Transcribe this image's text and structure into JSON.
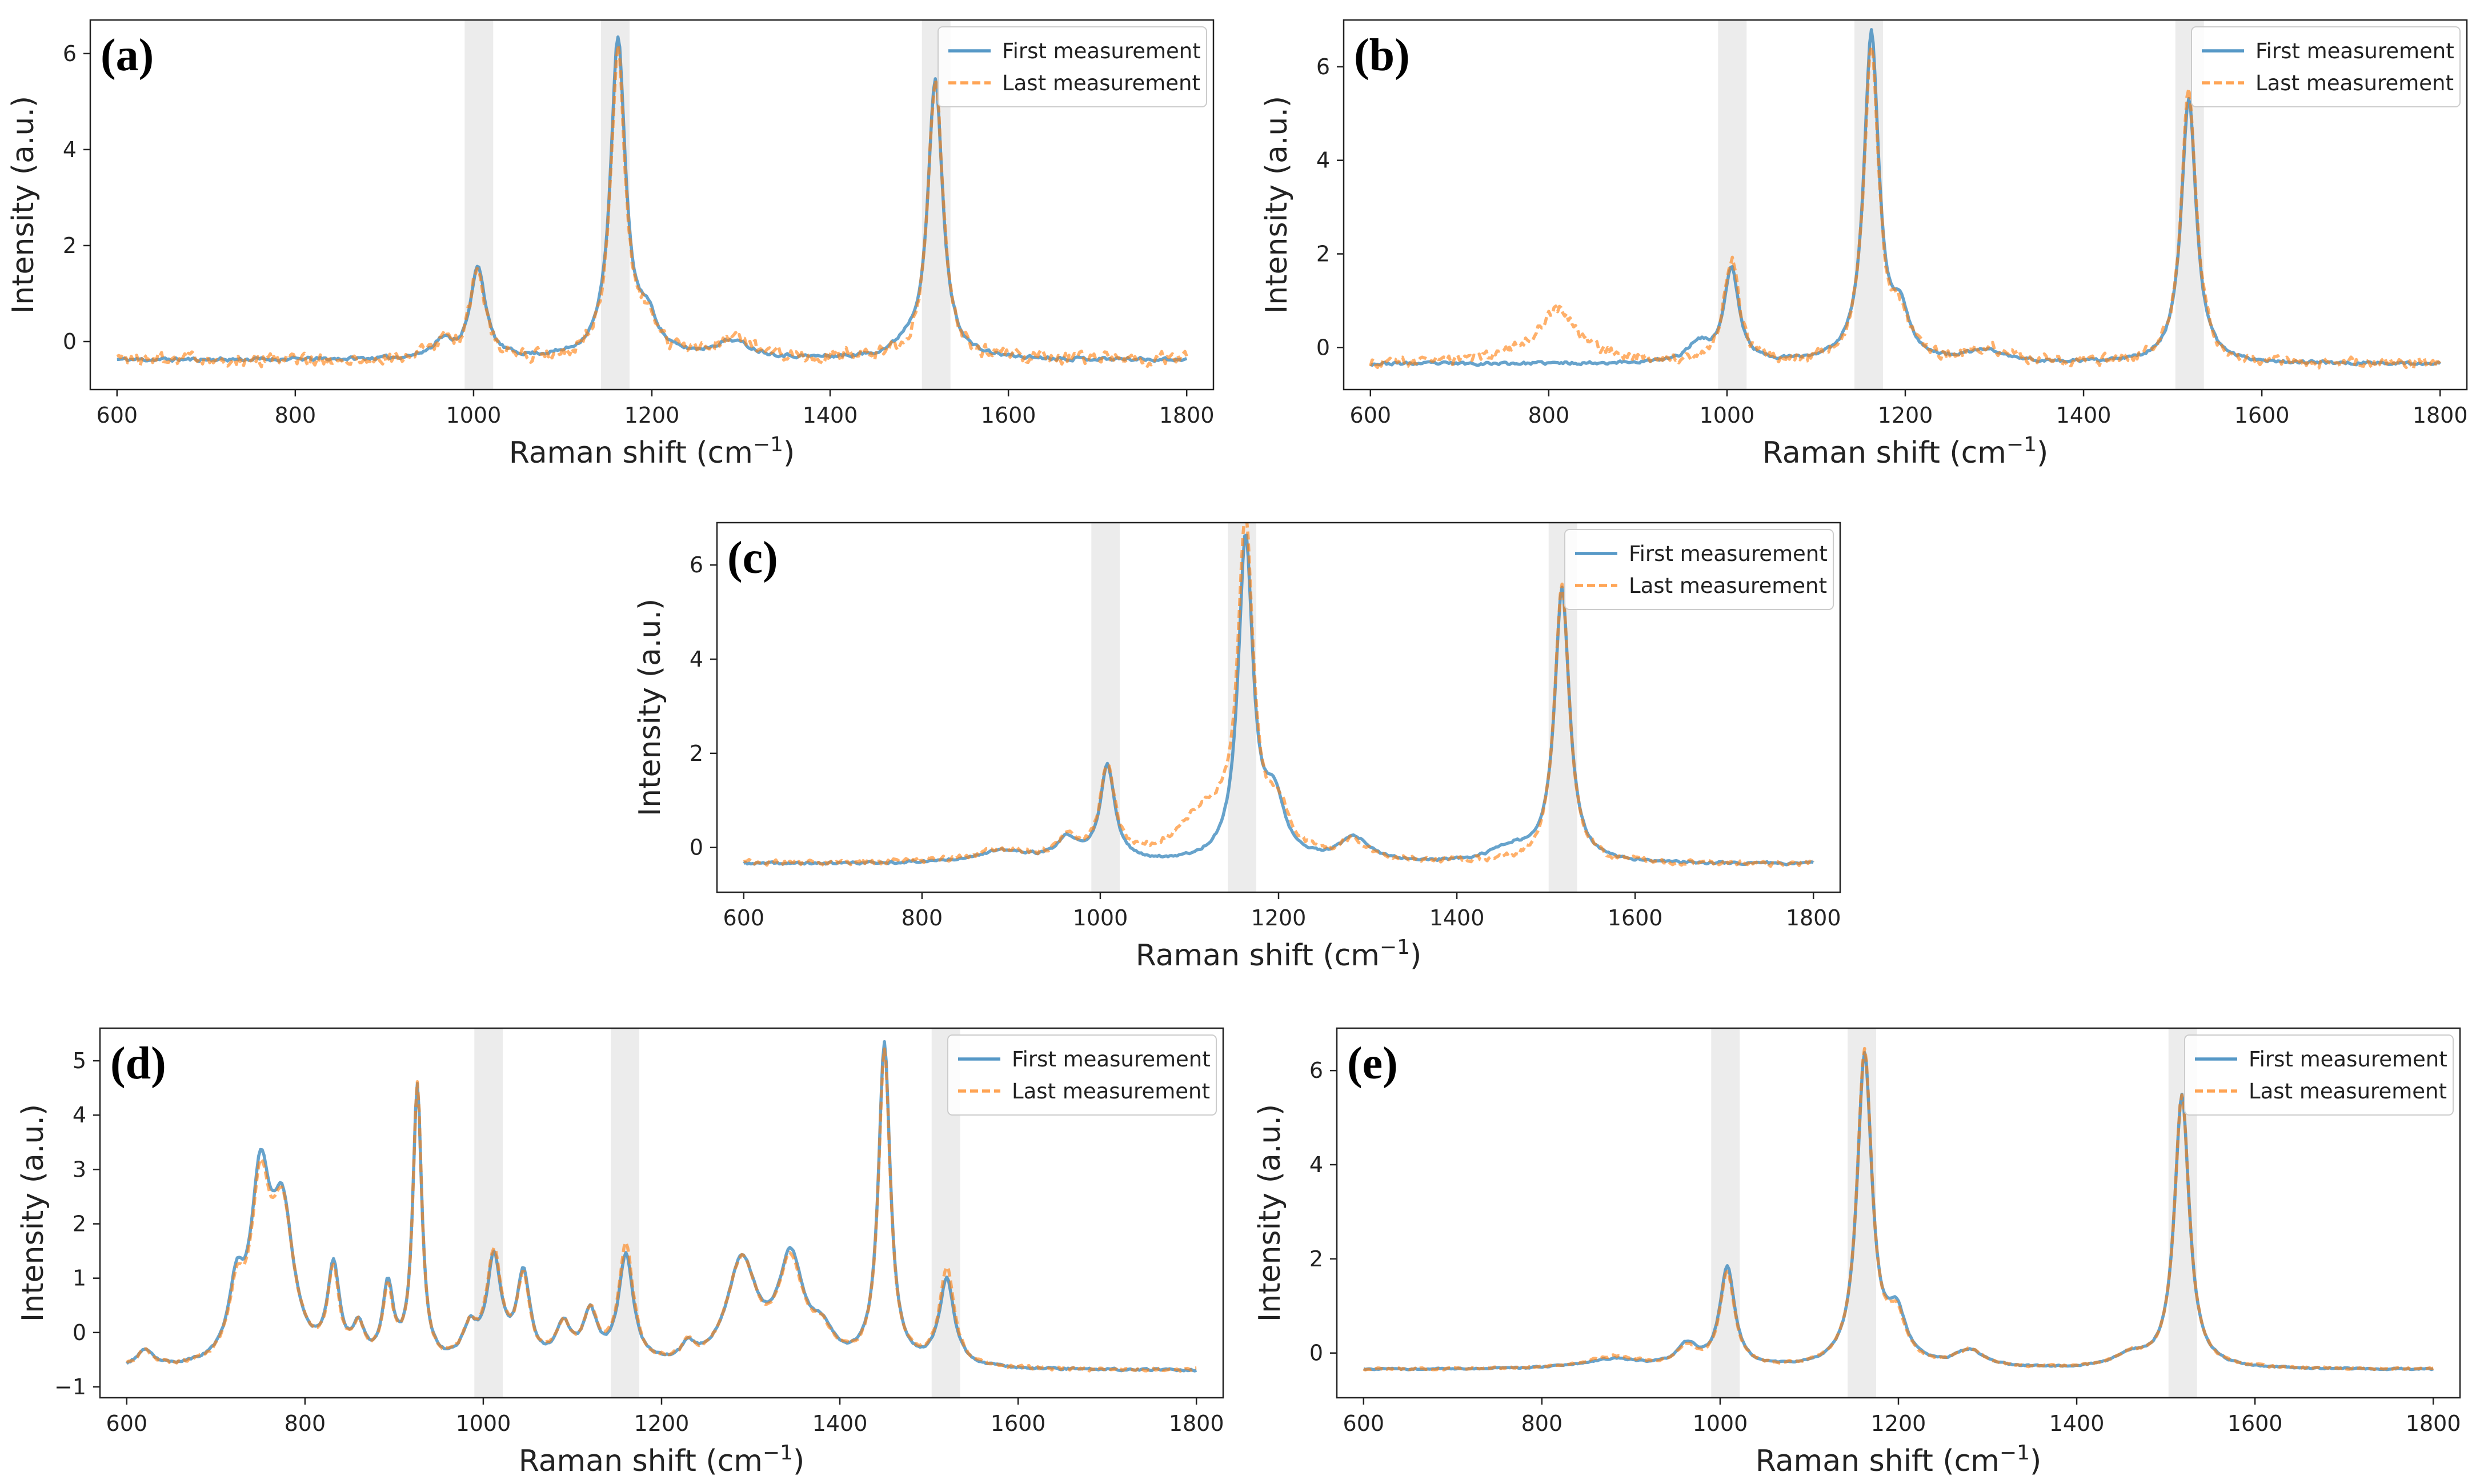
{
  "figure": {
    "legend_entries": [
      "First measurement",
      "Last measurement"
    ],
    "colors": {
      "first": "#1f77b4",
      "last": "#ff7f0e",
      "band": "#dddddd",
      "axis": "#222222"
    }
  },
  "chart_data": [
    {
      "panel": "(a)",
      "type": "line",
      "xlabel": "Raman shift (cm",
      "xlabel_sup": "−1",
      "xlabel_end": ")",
      "ylabel": "Intensity (a.u.)",
      "xlim": [
        570,
        1830
      ],
      "ylim": [
        -1.0,
        6.7
      ],
      "xticks": [
        600,
        800,
        1000,
        1200,
        1400,
        1600,
        1800
      ],
      "yticks": [
        0,
        2,
        4,
        6
      ],
      "shaded_bands": [
        [
          990,
          1022
        ],
        [
          1143,
          1175
        ],
        [
          1503,
          1535
        ]
      ],
      "legend": "top-right",
      "baseline": -0.38,
      "noise_first": 0.06,
      "noise_last": 0.22,
      "seed": 11,
      "series": [
        {
          "name": "First measurement",
          "peaks": [
            [
              1005,
              1.9,
              10
            ],
            [
              1162,
              6.6,
              10
            ],
            [
              1518,
              5.8,
              10
            ],
            [
              965,
              0.35,
              14
            ],
            [
              1195,
              0.7,
              14
            ],
            [
              1290,
              0.35,
              25
            ],
            [
              1485,
              0.2,
              15
            ]
          ]
        },
        {
          "name": "Last measurement",
          "peaks": [
            [
              1005,
              1.9,
              10
            ],
            [
              1162,
              6.3,
              10
            ],
            [
              1518,
              5.8,
              10
            ],
            [
              965,
              0.3,
              14
            ],
            [
              1195,
              0.6,
              14
            ],
            [
              1290,
              0.4,
              25
            ]
          ]
        }
      ]
    },
    {
      "panel": "(b)",
      "type": "line",
      "xlabel": "Raman shift (cm",
      "xlabel_sup": "−1",
      "xlabel_end": ")",
      "ylabel": "Intensity (a.u.)",
      "xlim": [
        570,
        1830
      ],
      "ylim": [
        -0.9,
        7.0
      ],
      "xticks": [
        600,
        800,
        1000,
        1200,
        1400,
        1600,
        1800
      ],
      "yticks": [
        0,
        2,
        4,
        6
      ],
      "shaded_bands": [
        [
          990,
          1022
        ],
        [
          1143,
          1175
        ],
        [
          1503,
          1535
        ]
      ],
      "legend": "top-right",
      "baseline": -0.35,
      "noise_first": 0.05,
      "noise_last": 0.18,
      "seed": 23,
      "series": [
        {
          "name": "First measurement",
          "peaks": [
            [
              1005,
              2.0,
              10
            ],
            [
              1162,
              7.0,
              10
            ],
            [
              1518,
              5.7,
              10
            ],
            [
              968,
              0.4,
              14
            ],
            [
              1195,
              0.9,
              12
            ],
            [
              1290,
              0.25,
              25
            ]
          ]
        },
        {
          "name": "Last measurement",
          "peaks": [
            [
              1005,
              2.2,
              10
            ],
            [
              1162,
              6.7,
              10
            ],
            [
              1518,
              5.9,
              10
            ],
            [
              810,
              1.15,
              30
            ],
            [
              1195,
              0.8,
              12
            ],
            [
              1290,
              0.3,
              25
            ]
          ]
        }
      ]
    },
    {
      "panel": "(c)",
      "type": "line",
      "xlabel": "Raman shift (cm",
      "xlabel_sup": "−1",
      "xlabel_end": ")",
      "ylabel": "Intensity (a.u.)",
      "xlim": [
        570,
        1830
      ],
      "ylim": [
        -0.95,
        6.9
      ],
      "xticks": [
        600,
        800,
        1000,
        1200,
        1400,
        1600,
        1800
      ],
      "yticks": [
        0,
        2,
        4,
        6
      ],
      "shaded_bands": [
        [
          990,
          1022
        ],
        [
          1143,
          1175
        ],
        [
          1503,
          1535
        ]
      ],
      "legend": "top-right",
      "baseline": -0.35,
      "noise_first": 0.04,
      "noise_last": 0.1,
      "seed": 37,
      "series": [
        {
          "name": "First measurement",
          "peaks": [
            [
              1008,
              2.0,
              10
            ],
            [
              1163,
              6.8,
              10
            ],
            [
              1518,
              5.8,
              10
            ],
            [
              963,
              0.45,
              14
            ],
            [
              1195,
              1.2,
              14
            ],
            [
              1285,
              0.5,
              20
            ],
            [
              890,
              0.25,
              40
            ],
            [
              1460,
              0.3,
              25
            ]
          ]
        },
        {
          "name": "Last measurement",
          "peaks": [
            [
              1008,
              1.95,
              10
            ],
            [
              1163,
              6.9,
              10
            ],
            [
              1518,
              5.9,
              10
            ],
            [
              963,
              0.4,
              14
            ],
            [
              1120,
              1.0,
              40
            ],
            [
              1200,
              0.9,
              14
            ],
            [
              1285,
              0.4,
              20
            ],
            [
              890,
              0.25,
              40
            ]
          ]
        }
      ]
    },
    {
      "panel": "(d)",
      "type": "line",
      "xlabel": "Raman shift (cm",
      "xlabel_sup": "−1",
      "xlabel_end": ")",
      "ylabel": "Intensity (a.u.)",
      "xlim": [
        570,
        1830
      ],
      "ylim": [
        -1.2,
        5.6
      ],
      "xticks": [
        600,
        800,
        1000,
        1200,
        1400,
        1600,
        1800
      ],
      "yticks": [
        -1,
        0,
        1,
        2,
        3,
        4,
        5
      ],
      "shaded_bands": [
        [
          990,
          1022
        ],
        [
          1143,
          1175
        ],
        [
          1503,
          1535
        ]
      ],
      "legend": "top-right",
      "baseline": -0.7,
      "noise_first": 0.03,
      "noise_last": 0.05,
      "seed": 53,
      "series": [
        {
          "name": "First measurement",
          "peaks": [
            [
              620,
              0.3,
              12
            ],
            [
              723,
              1.2,
              10
            ],
            [
              750,
              3.2,
              13
            ],
            [
              775,
              2.6,
              15
            ],
            [
              832,
              1.7,
              8
            ],
            [
              860,
              0.6,
              8
            ],
            [
              893,
              1.4,
              7
            ],
            [
              926,
              5.1,
              6
            ],
            [
              985,
              0.6,
              10
            ],
            [
              1012,
              1.9,
              10
            ],
            [
              1045,
              1.6,
              9
            ],
            [
              1090,
              0.7,
              10
            ],
            [
              1120,
              0.9,
              10
            ],
            [
              1160,
              2.0,
              10
            ],
            [
              1230,
              0.3,
              8
            ],
            [
              1290,
              1.9,
              20
            ],
            [
              1345,
              1.9,
              17
            ],
            [
              1380,
              0.5,
              15
            ],
            [
              1450,
              5.9,
              8
            ],
            [
              1520,
              1.6,
              10
            ]
          ]
        },
        {
          "name": "Last measurement",
          "peaks": [
            [
              620,
              0.3,
              12
            ],
            [
              723,
              1.1,
              10
            ],
            [
              750,
              3.0,
              13
            ],
            [
              775,
              2.6,
              15
            ],
            [
              832,
              1.6,
              8
            ],
            [
              860,
              0.6,
              8
            ],
            [
              893,
              1.3,
              7
            ],
            [
              926,
              5.1,
              6
            ],
            [
              985,
              0.6,
              10
            ],
            [
              1012,
              2.0,
              10
            ],
            [
              1045,
              1.5,
              9
            ],
            [
              1090,
              0.7,
              10
            ],
            [
              1120,
              0.9,
              10
            ],
            [
              1160,
              2.2,
              10
            ],
            [
              1230,
              0.3,
              8
            ],
            [
              1290,
              1.9,
              20
            ],
            [
              1345,
              1.8,
              17
            ],
            [
              1380,
              0.5,
              15
            ],
            [
              1450,
              5.8,
              8
            ],
            [
              1520,
              1.8,
              10
            ]
          ]
        }
      ]
    },
    {
      "panel": "(e)",
      "type": "line",
      "xlabel": "Raman shift (cm",
      "xlabel_sup": "−1",
      "xlabel_end": ")",
      "ylabel": "Intensity (a.u.)",
      "xlim": [
        570,
        1830
      ],
      "ylim": [
        -0.95,
        6.9
      ],
      "xticks": [
        600,
        800,
        1000,
        1200,
        1400,
        1600,
        1800
      ],
      "yticks": [
        0,
        2,
        4,
        6
      ],
      "shaded_bands": [
        [
          990,
          1022
        ],
        [
          1143,
          1175
        ],
        [
          1503,
          1535
        ]
      ],
      "legend": "top-right",
      "baseline": -0.35,
      "noise_first": 0.025,
      "noise_last": 0.035,
      "seed": 71,
      "series": [
        {
          "name": "First measurement",
          "peaks": [
            [
              1008,
              2.1,
              10
            ],
            [
              1162,
              6.6,
              10
            ],
            [
              1518,
              5.8,
              10
            ],
            [
              963,
              0.45,
              14
            ],
            [
              1198,
              1.0,
              13
            ],
            [
              1280,
              0.35,
              20
            ],
            [
              880,
              0.2,
              40
            ],
            [
              1460,
              0.25,
              20
            ]
          ]
        },
        {
          "name": "Last measurement",
          "peaks": [
            [
              1008,
              2.0,
              10
            ],
            [
              1162,
              6.7,
              10
            ],
            [
              1518,
              5.8,
              10
            ],
            [
              963,
              0.4,
              14
            ],
            [
              1198,
              0.9,
              13
            ],
            [
              1280,
              0.35,
              20
            ],
            [
              880,
              0.25,
              40
            ],
            [
              1460,
              0.25,
              20
            ]
          ]
        }
      ]
    }
  ]
}
